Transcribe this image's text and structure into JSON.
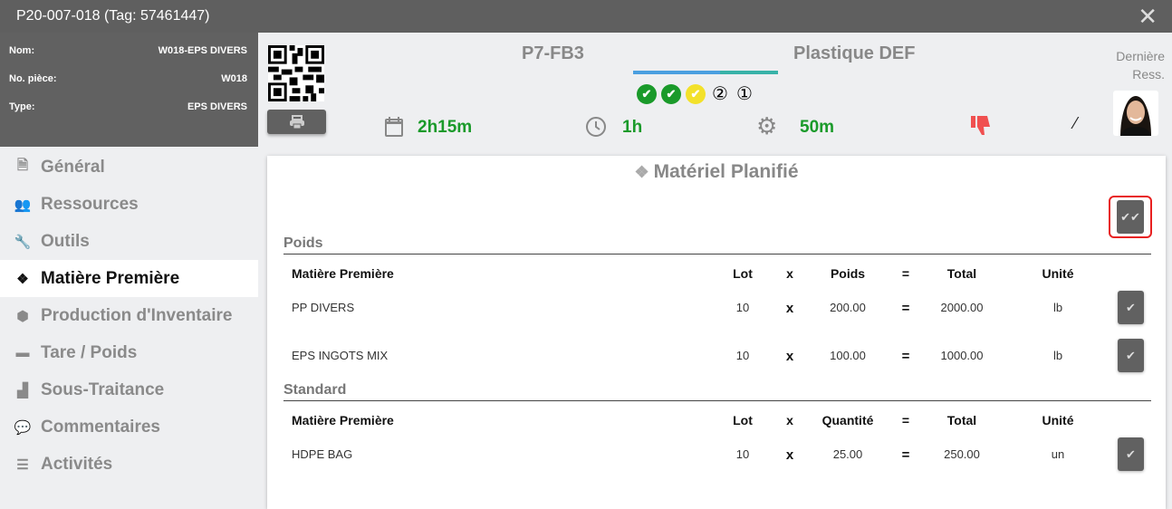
{
  "window": {
    "title": "P20-007-018 (Tag: 57461447)",
    "close": "✕"
  },
  "info": [
    {
      "label": "Nom:",
      "value": "W018-EPS DIVERS"
    },
    {
      "label": "No. pièce:",
      "value": "W018"
    },
    {
      "label": "Type:",
      "value": "EPS DIVERS"
    }
  ],
  "header": {
    "machine": "P7-FB3",
    "material": "Plastique DEF",
    "progress": {
      "blue_fraction": 0.6,
      "colors": [
        "#4a9fe0",
        "#38b2a8"
      ]
    },
    "steps": [
      {
        "state": "done",
        "color": "#1a9a2a",
        "glyph": "✔"
      },
      {
        "state": "done",
        "color": "#1a9a2a",
        "glyph": "✔"
      },
      {
        "state": "current",
        "color": "#f3e12a",
        "glyph": "✔"
      },
      {
        "state": "pending",
        "glyph": "②"
      },
      {
        "state": "pending",
        "glyph": "①"
      }
    ],
    "duration": "2h15m",
    "time": "1h",
    "setup": "50m",
    "last_resource_label": "Dernière Ress.",
    "thumbs_color": "#f05050"
  },
  "sidebar": {
    "items": [
      {
        "label": "Général",
        "icon": "document-icon"
      },
      {
        "label": "Ressources",
        "icon": "users-icon"
      },
      {
        "label": "Outils",
        "icon": "wrench-icon"
      },
      {
        "label": "Matière Première",
        "icon": "cubes-icon",
        "active": true
      },
      {
        "label": "Production d'Inventaire",
        "icon": "box-icon"
      },
      {
        "label": "Tare / Poids",
        "icon": "archive-icon"
      },
      {
        "label": "Sous-Traitance",
        "icon": "factory-icon"
      },
      {
        "label": "Commentaires",
        "icon": "comments-icon"
      },
      {
        "label": "Activités",
        "icon": "list-icon"
      }
    ]
  },
  "main": {
    "title": "Matériel Planifié",
    "sections": [
      {
        "title": "Poids",
        "headers": [
          "Matière Première",
          "Lot",
          "x",
          "Poids",
          "=",
          "Total",
          "Unité"
        ],
        "rows": [
          [
            "PP DIVERS",
            "10",
            "x",
            "200.00",
            "=",
            "2000.00",
            "lb"
          ],
          [
            "EPS INGOTS MIX",
            "10",
            "x",
            "100.00",
            "=",
            "1000.00",
            "lb"
          ]
        ]
      },
      {
        "title": "Standard",
        "headers": [
          "Matière Première",
          "Lot",
          "x",
          "Quantité",
          "=",
          "Total",
          "Unité"
        ],
        "rows": [
          [
            "HDPE BAG",
            "10",
            "x",
            "25.00",
            "=",
            "250.00",
            "un"
          ]
        ]
      }
    ]
  }
}
